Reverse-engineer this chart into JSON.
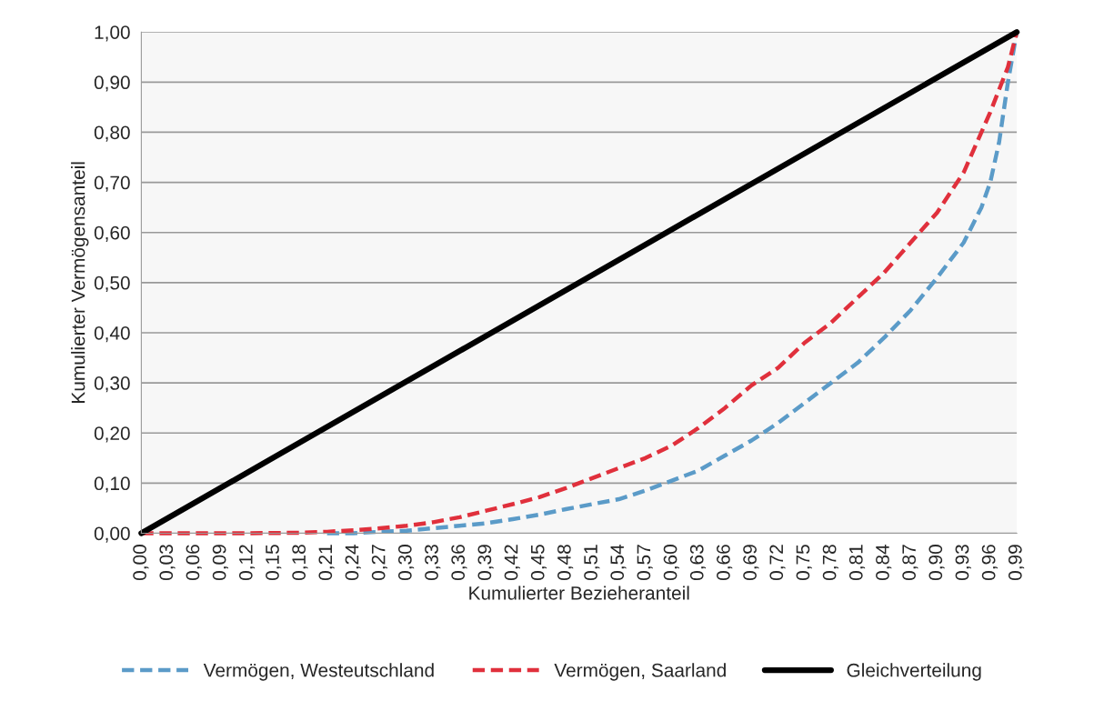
{
  "chart_data": {
    "type": "line",
    "xlabel": "Kumulierter Bezieheranteil",
    "ylabel": "Kumulierter Vermögensanteil",
    "xlim": [
      0,
      0.99
    ],
    "xticks": [
      {
        "value": 0,
        "label": "0,00"
      },
      {
        "value": 0.03,
        "label": "0,03"
      },
      {
        "value": 0.06,
        "label": "0,06"
      },
      {
        "value": 0.09,
        "label": "0,09"
      },
      {
        "value": 0.12,
        "label": "0,12"
      },
      {
        "value": 0.15,
        "label": "0,15"
      },
      {
        "value": 0.18,
        "label": "0,18"
      },
      {
        "value": 0.21,
        "label": "0,21"
      },
      {
        "value": 0.24,
        "label": "0,24"
      },
      {
        "value": 0.27,
        "label": "0,27"
      },
      {
        "value": 0.3,
        "label": "0,30"
      },
      {
        "value": 0.33,
        "label": "0,33"
      },
      {
        "value": 0.36,
        "label": "0,36"
      },
      {
        "value": 0.39,
        "label": "0,39"
      },
      {
        "value": 0.42,
        "label": "0,42"
      },
      {
        "value": 0.45,
        "label": "0,45"
      },
      {
        "value": 0.48,
        "label": "0,48"
      },
      {
        "value": 0.51,
        "label": "0,51"
      },
      {
        "value": 0.54,
        "label": "0,54"
      },
      {
        "value": 0.57,
        "label": "0,57"
      },
      {
        "value": 0.6,
        "label": "0,60"
      },
      {
        "value": 0.63,
        "label": "0,63"
      },
      {
        "value": 0.66,
        "label": "0,66"
      },
      {
        "value": 0.69,
        "label": "0,69"
      },
      {
        "value": 0.72,
        "label": "0,72"
      },
      {
        "value": 0.75,
        "label": "0,75"
      },
      {
        "value": 0.78,
        "label": "0,78"
      },
      {
        "value": 0.81,
        "label": "0,81"
      },
      {
        "value": 0.84,
        "label": "0,84"
      },
      {
        "value": 0.87,
        "label": "0,87"
      },
      {
        "value": 0.9,
        "label": "0,90"
      },
      {
        "value": 0.93,
        "label": "0,93"
      },
      {
        "value": 0.96,
        "label": "0,96"
      },
      {
        "value": 0.99,
        "label": "0,99"
      }
    ],
    "ylim": [
      0,
      1
    ],
    "yticks": [
      {
        "value": 0,
        "label": "0,00"
      },
      {
        "value": 0.1,
        "label": "0,10"
      },
      {
        "value": 0.2,
        "label": "0,20"
      },
      {
        "value": 0.3,
        "label": "0,30"
      },
      {
        "value": 0.4,
        "label": "0,40"
      },
      {
        "value": 0.5,
        "label": "0,50"
      },
      {
        "value": 0.6,
        "label": "0,60"
      },
      {
        "value": 0.7,
        "label": "0,70"
      },
      {
        "value": 0.8,
        "label": "0,80"
      },
      {
        "value": 0.9,
        "label": "0,90"
      },
      {
        "value": 1,
        "label": "1,00"
      }
    ],
    "grid": "y",
    "legend": "bottom",
    "marker": "none",
    "series": [
      {
        "name": "Vermögen, Westeutschland",
        "color": "#5b9bc8",
        "line_style": "dashed",
        "x": [
          0.21,
          0.24,
          0.27,
          0.3,
          0.33,
          0.36,
          0.39,
          0.42,
          0.45,
          0.48,
          0.51,
          0.54,
          0.57,
          0.6,
          0.63,
          0.66,
          0.69,
          0.72,
          0.75,
          0.78,
          0.81,
          0.84,
          0.87,
          0.9,
          0.93,
          0.95,
          0.96,
          0.97,
          0.98,
          0.99
        ],
        "values": [
          0,
          0,
          0.003,
          0.005,
          0.01,
          0.015,
          0.02,
          0.028,
          0.037,
          0.048,
          0.058,
          0.068,
          0.085,
          0.105,
          0.125,
          0.155,
          0.185,
          0.22,
          0.26,
          0.3,
          0.34,
          0.39,
          0.445,
          0.51,
          0.58,
          0.65,
          0.7,
          0.78,
          0.9,
          1.0
        ]
      },
      {
        "name": "Vermögen, Saarland",
        "color": "#e0303c",
        "line_style": "dashed",
        "x": [
          0,
          0.06,
          0.12,
          0.18,
          0.21,
          0.24,
          0.27,
          0.3,
          0.33,
          0.36,
          0.39,
          0.42,
          0.45,
          0.48,
          0.51,
          0.54,
          0.57,
          0.6,
          0.63,
          0.66,
          0.69,
          0.72,
          0.75,
          0.78,
          0.81,
          0.84,
          0.87,
          0.9,
          0.93,
          0.96,
          0.98,
          0.99
        ],
        "values": [
          0,
          0,
          0,
          0.001,
          0.003,
          0.006,
          0.01,
          0.015,
          0.022,
          0.032,
          0.045,
          0.058,
          0.072,
          0.09,
          0.11,
          0.13,
          0.15,
          0.175,
          0.21,
          0.25,
          0.295,
          0.33,
          0.38,
          0.42,
          0.47,
          0.52,
          0.58,
          0.64,
          0.72,
          0.84,
          0.93,
          1.0
        ]
      },
      {
        "name": "Gleichverteilung",
        "color": "#000000",
        "line_style": "solid",
        "x": [
          0,
          0.99
        ],
        "values": [
          0,
          1
        ]
      }
    ]
  }
}
